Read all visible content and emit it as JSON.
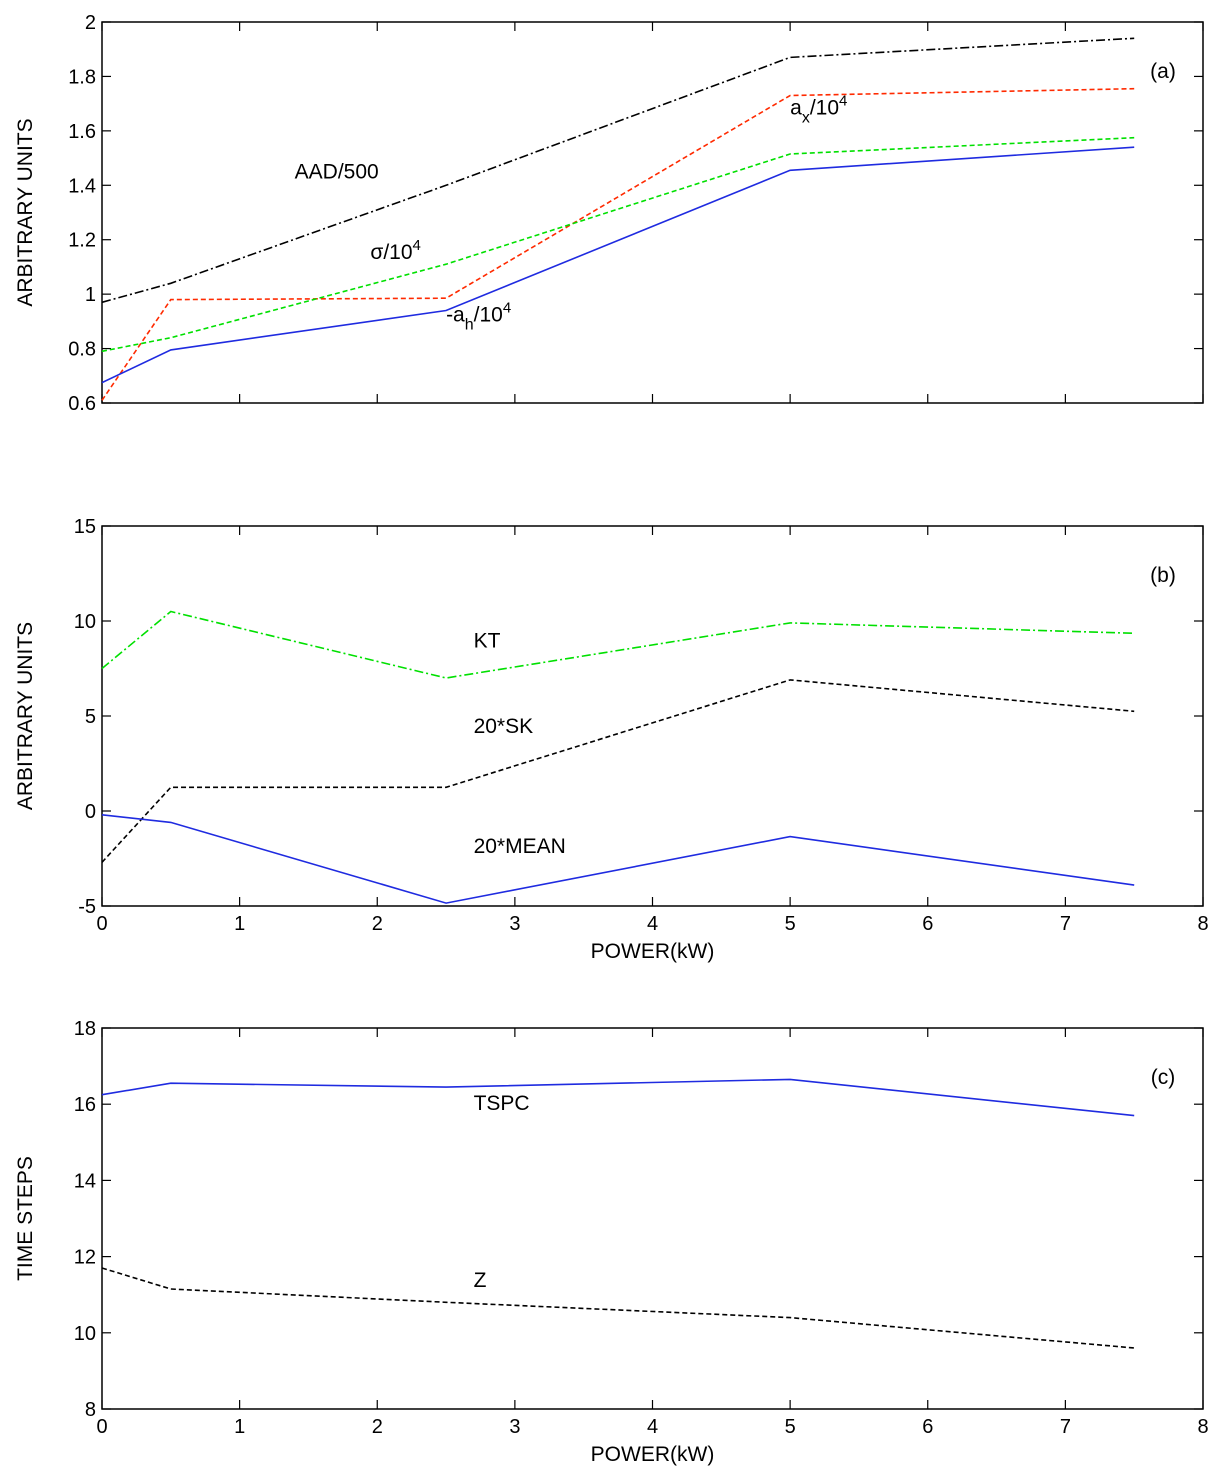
{
  "chart_data": [
    {
      "type": "line",
      "panel_label": "(a)",
      "ylabel": "ARBITRARY UNITS",
      "xlabel": "",
      "xlim": [
        0,
        8
      ],
      "ylim": [
        0.6,
        2
      ],
      "x_ticks": [
        0,
        1,
        2,
        3,
        4,
        5,
        6,
        7,
        8
      ],
      "y_ticks": [
        0.6,
        0.8,
        1,
        1.2,
        1.4,
        1.6,
        1.8,
        2
      ],
      "y_tick_labels": [
        "0.6",
        "0.8",
        "1",
        "1.2",
        "1.4",
        "1.6",
        "1.8",
        "2"
      ],
      "x_tick_labels_shown": false,
      "x": [
        0,
        0.5,
        2.5,
        5,
        7.5
      ],
      "series": [
        {
          "key": "aad",
          "values": [
            0.97,
            1.04,
            1.4,
            1.87,
            1.94
          ],
          "color": "#000000",
          "dash": "9 3 2 3"
        },
        {
          "key": "ax",
          "values": [
            0.61,
            0.98,
            0.985,
            1.73,
            1.755
          ],
          "color": "#ff2a00",
          "dash": "5 3"
        },
        {
          "key": "sigma",
          "values": [
            0.79,
            0.84,
            1.11,
            1.515,
            1.575
          ],
          "color": "#00e000",
          "dash": "5 3"
        },
        {
          "key": "ah",
          "values": [
            0.675,
            0.795,
            0.94,
            1.455,
            1.54
          ],
          "color": "#1f2be0",
          "dash": ""
        }
      ],
      "annotations": [
        {
          "key": "aad",
          "text": "AAD/500",
          "x": 1.4,
          "y": 1.425
        },
        {
          "key": "sigma",
          "base": "σ/10",
          "sup": "4",
          "x": 1.95,
          "y": 1.13
        },
        {
          "key": "ax",
          "base": "a",
          "sub": "x",
          "rest": "/10",
          "sup": "4",
          "x": 5.0,
          "y": 1.66
        },
        {
          "key": "ah",
          "base": "-a",
          "sub": "h",
          "rest": "/10",
          "sup": "4",
          "x": 2.5,
          "y": 0.9
        }
      ]
    },
    {
      "type": "line",
      "panel_label": "(b)",
      "ylabel": "ARBITRARY UNITS",
      "xlabel": "POWER(kW)",
      "xlim": [
        0,
        8
      ],
      "ylim": [
        -5,
        15
      ],
      "x_ticks": [
        0,
        1,
        2,
        3,
        4,
        5,
        6,
        7,
        8
      ],
      "y_ticks": [
        -5,
        0,
        5,
        10,
        15
      ],
      "y_tick_labels": [
        "-5",
        "0",
        "5",
        "10",
        "15"
      ],
      "x_tick_labels_shown": true,
      "x": [
        0,
        0.5,
        2.5,
        5,
        7.5
      ],
      "series": [
        {
          "key": "kt",
          "values": [
            7.5,
            10.5,
            7.0,
            9.9,
            9.35
          ],
          "color": "#00e000",
          "dash": "9 3 2 3"
        },
        {
          "key": "sk",
          "values": [
            -2.7,
            1.25,
            1.25,
            6.9,
            5.25
          ],
          "color": "#000000",
          "dash": "5 3"
        },
        {
          "key": "mean",
          "values": [
            -0.2,
            -0.6,
            -4.85,
            -1.35,
            -3.9
          ],
          "color": "#1f2be0",
          "dash": ""
        }
      ],
      "annotations": [
        {
          "key": "kt",
          "text": "KT",
          "x": 2.7,
          "y": 8.6
        },
        {
          "key": "sk",
          "text": "20*SK",
          "x": 2.7,
          "y": 4.1
        },
        {
          "key": "mean",
          "text": "20*MEAN",
          "x": 2.7,
          "y": -2.2
        }
      ]
    },
    {
      "type": "line",
      "panel_label": "(c)",
      "ylabel": "TIME STEPS",
      "xlabel": "POWER(kW)",
      "xlim": [
        0,
        8
      ],
      "ylim": [
        8,
        18
      ],
      "x_ticks": [
        0,
        1,
        2,
        3,
        4,
        5,
        6,
        7,
        8
      ],
      "y_ticks": [
        8,
        10,
        12,
        14,
        16,
        18
      ],
      "y_tick_labels": [
        "8",
        "10",
        "12",
        "14",
        "16",
        "18"
      ],
      "x_tick_labels_shown": true,
      "x": [
        0,
        0.5,
        2.5,
        5,
        7.5
      ],
      "series": [
        {
          "key": "tspc",
          "values": [
            16.25,
            16.55,
            16.45,
            16.65,
            15.7
          ],
          "color": "#1f2be0",
          "dash": ""
        },
        {
          "key": "z",
          "values": [
            11.7,
            11.15,
            10.8,
            10.4,
            9.6
          ],
          "color": "#000000",
          "dash": "5 3"
        }
      ],
      "annotations": [
        {
          "key": "tspc",
          "text": "TSPC",
          "x": 2.7,
          "y": 15.85
        },
        {
          "key": "z",
          "text": "Z",
          "x": 2.7,
          "y": 11.2
        }
      ]
    }
  ]
}
